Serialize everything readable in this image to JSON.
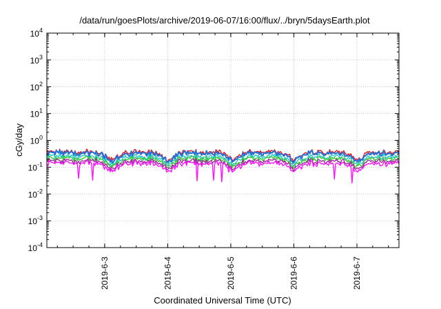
{
  "chart_data": {
    "type": "line",
    "title": "/data/run/goesPlots/archive/2019-06-07/16:00/flux/../bryn/5daysEarth.plot",
    "xlabel": "Coordinated Universal Time (UTC)",
    "ylabel": "cGy/day",
    "yscale": "log",
    "ylim": [
      0.0001,
      10000
    ],
    "xlim": [
      "2019-06-02 02:00",
      "2019-06-07 16:00"
    ],
    "grid": true,
    "y_ticks": [
      {
        "base": "10",
        "exp": "-4"
      },
      {
        "base": "10",
        "exp": "-3"
      },
      {
        "base": "10",
        "exp": "-2"
      },
      {
        "base": "10",
        "exp": "-1"
      },
      {
        "base": "10",
        "exp": "0"
      },
      {
        "base": "10",
        "exp": "1"
      },
      {
        "base": "10",
        "exp": "2"
      },
      {
        "base": "10",
        "exp": "3"
      },
      {
        "base": "10",
        "exp": "4"
      }
    ],
    "x_ticks": [
      "2019-6-3",
      "2019-6-4",
      "2019-6-5",
      "2019-6-6",
      "2019-6-7"
    ],
    "x_tick_times": [
      "2019-06-03 00:00",
      "2019-06-04 00:00",
      "2019-06-05 00:00",
      "2019-06-06 00:00",
      "2019-06-07 00:00"
    ],
    "daily_dip_times": [
      "2019-06-03 02:30",
      "2019-06-04 00:00",
      "2019-06-05 00:30",
      "2019-06-06 00:00",
      "2019-06-07 00:30"
    ],
    "series": [
      {
        "color": "#e8141c",
        "base": 0.37
      },
      {
        "color": "#2c6fd0",
        "base": 0.33
      },
      {
        "color": "#20c8c8",
        "base": 0.25
      },
      {
        "color": "#38c838",
        "base": 0.21
      },
      {
        "color": "#9a2a9a",
        "base": 0.17
      },
      {
        "color": "#ff10ff",
        "base": 0.14
      }
    ]
  }
}
